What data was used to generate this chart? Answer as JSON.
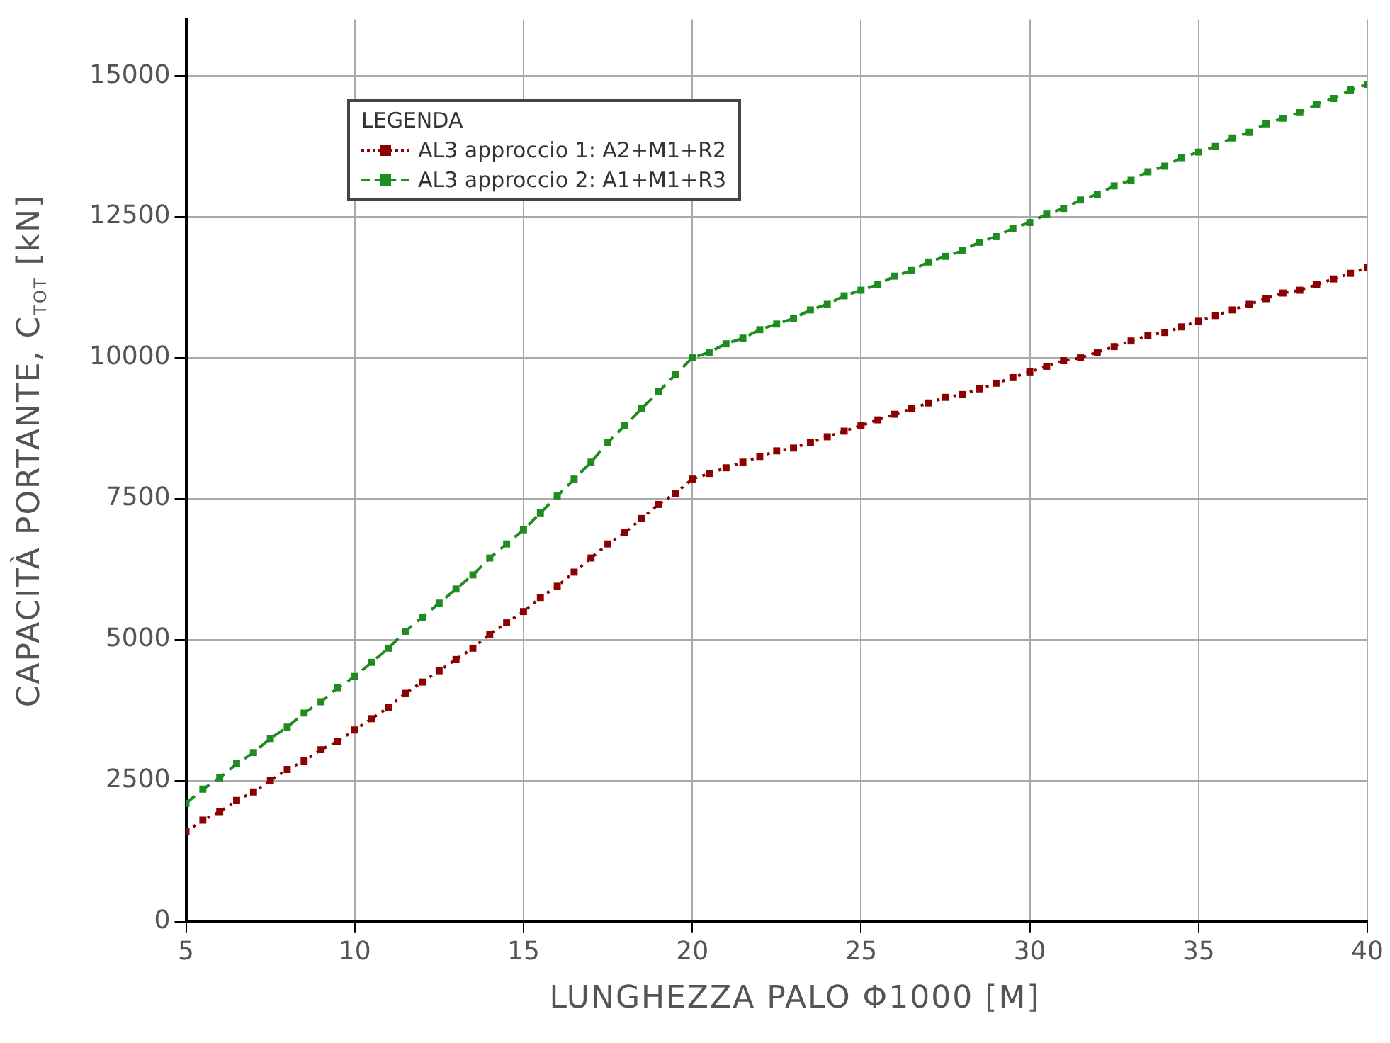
{
  "chart_data": {
    "type": "line",
    "xlabel": "LUNGHEZZA PALO Φ1000 [M]",
    "ylabel": "CAPACITÀ PORTANTE, C$_{TOT}$ [kN]",
    "legend_title": "LEGENDA",
    "legend": "top left",
    "grid": true,
    "marker": "square",
    "xlim": [
      5,
      40
    ],
    "xticks": [
      5,
      10,
      15,
      20,
      25,
      30,
      35,
      40
    ],
    "ylim": [
      0,
      16000
    ],
    "yticks": [
      0,
      2500,
      5000,
      7500,
      10000,
      12500,
      15000
    ],
    "x": [
      5,
      5.5,
      6,
      6.5,
      7,
      7.5,
      8,
      8.5,
      9,
      9.5,
      10,
      10.5,
      11,
      11.5,
      12,
      12.5,
      13,
      13.5,
      14,
      14.5,
      15,
      15.5,
      16,
      16.5,
      17,
      17.5,
      18,
      18.5,
      19,
      19.5,
      20,
      20.5,
      21,
      21.5,
      22,
      22.5,
      23,
      23.5,
      24,
      24.5,
      25,
      25.5,
      26,
      26.5,
      27,
      27.5,
      28,
      28.5,
      29,
      29.5,
      30,
      30.5,
      31,
      31.5,
      32,
      32.5,
      33,
      33.5,
      34,
      34.5,
      35,
      35.5,
      36,
      36.5,
      37,
      37.5,
      38,
      38.5,
      39,
      39.5,
      40
    ],
    "series": [
      {
        "name": "AL3 approccio 1: A2+M1+R2",
        "color": "#8b0000",
        "line_style": "dotted",
        "values": [
          1600,
          1800,
          1950,
          2150,
          2300,
          2500,
          2700,
          2850,
          3050,
          3200,
          3400,
          3600,
          3800,
          4050,
          4250,
          4450,
          4650,
          4850,
          5100,
          5300,
          5500,
          5750,
          5950,
          6200,
          6450,
          6700,
          6900,
          7150,
          7400,
          7600,
          7850,
          7950,
          8050,
          8150,
          8250,
          8350,
          8400,
          8500,
          8600,
          8700,
          8800,
          8900,
          9000,
          9100,
          9200,
          9300,
          9350,
          9450,
          9550,
          9650,
          9750,
          9850,
          9950,
          10000,
          10100,
          10200,
          10300,
          10400,
          10450,
          10550,
          10650,
          10750,
          10850,
          10950,
          11050,
          11150,
          11200,
          11300,
          11400,
          11500,
          11600
        ]
      },
      {
        "name": "AL3 approccio 2: A1+M1+R3",
        "color": "#1e8c1e",
        "line_style": "dashed",
        "values": [
          2100,
          2350,
          2550,
          2800,
          3000,
          3250,
          3450,
          3700,
          3900,
          4150,
          4350,
          4600,
          4850,
          5150,
          5400,
          5650,
          5900,
          6150,
          6450,
          6700,
          6950,
          7250,
          7550,
          7850,
          8150,
          8500,
          8800,
          9100,
          9400,
          9700,
          10000,
          10100,
          10250,
          10350,
          10500,
          10600,
          10700,
          10850,
          10950,
          11100,
          11200,
          11300,
          11450,
          11550,
          11700,
          11800,
          11900,
          12050,
          12150,
          12300,
          12400,
          12550,
          12650,
          12800,
          12900,
          13050,
          13150,
          13300,
          13400,
          13550,
          13650,
          13750,
          13900,
          14000,
          14150,
          14250,
          14350,
          14500,
          14600,
          14750,
          14850
        ]
      }
    ]
  }
}
